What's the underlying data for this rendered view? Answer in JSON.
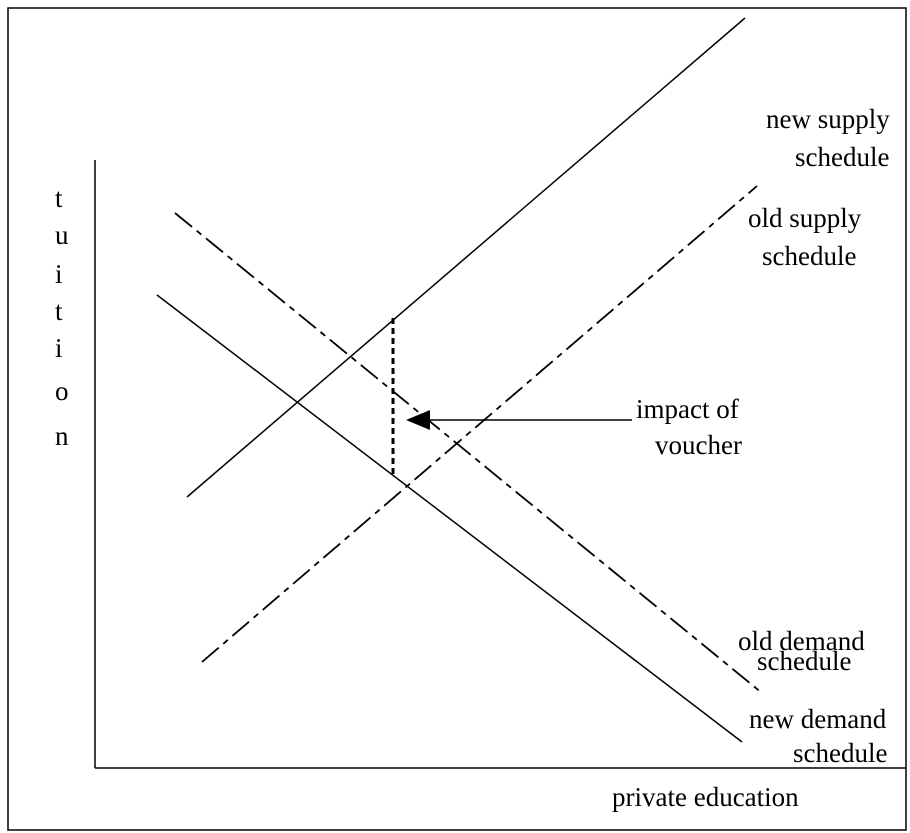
{
  "axes": {
    "y_label": "tuition",
    "x_label": "private education"
  },
  "labels": [
    {
      "lines": [
        "new supply",
        "schedule"
      ]
    },
    {
      "lines": [
        "old supply",
        "schedule"
      ]
    },
    {
      "lines": [
        "impact of",
        "voucher"
      ]
    },
    {
      "lines": [
        "old demand",
        "schedule"
      ]
    },
    {
      "lines": [
        "new demand",
        "schedule"
      ]
    }
  ]
}
